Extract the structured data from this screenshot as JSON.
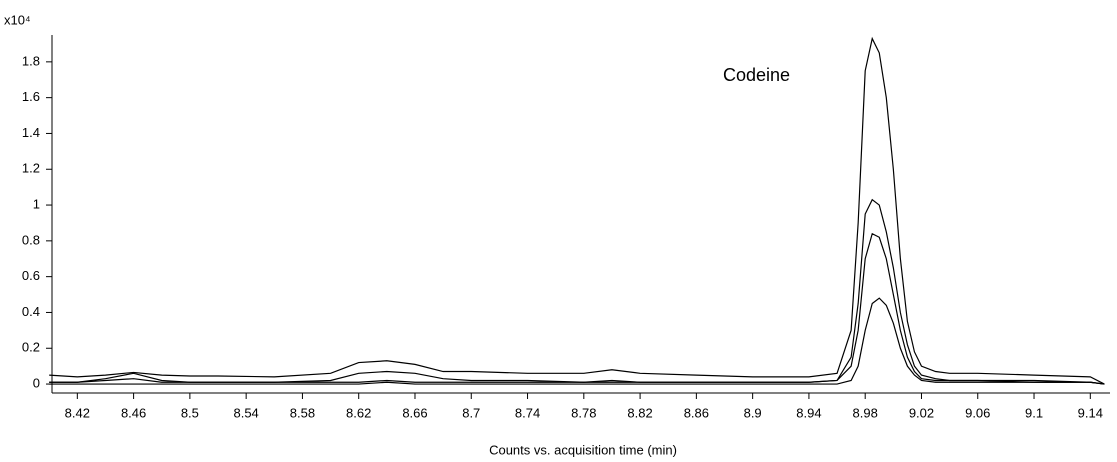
{
  "chart_data": {
    "type": "line",
    "y_multiplier": "x10⁴",
    "annotation": "Codeine",
    "xlabel": "Counts vs. acquisition time (min)",
    "x": [
      8.4,
      8.42,
      8.44,
      8.46,
      8.48,
      8.5,
      8.52,
      8.56,
      8.6,
      8.62,
      8.64,
      8.66,
      8.68,
      8.7,
      8.74,
      8.78,
      8.8,
      8.82,
      8.86,
      8.9,
      8.94,
      8.96,
      8.97,
      8.975,
      8.98,
      8.985,
      8.99,
      8.995,
      9.0,
      9.005,
      9.01,
      9.015,
      9.02,
      9.03,
      9.04,
      9.06,
      9.1,
      9.14,
      9.15
    ],
    "series": [
      {
        "color": "#000000",
        "values": [
          0.05,
          0.04,
          0.05,
          0.065,
          0.05,
          0.045,
          0.045,
          0.04,
          0.06,
          0.12,
          0.13,
          0.11,
          0.07,
          0.07,
          0.06,
          0.06,
          0.08,
          0.06,
          0.05,
          0.04,
          0.04,
          0.06,
          0.3,
          0.9,
          1.75,
          1.93,
          1.85,
          1.6,
          1.2,
          0.7,
          0.35,
          0.18,
          0.1,
          0.07,
          0.06,
          0.06,
          0.05,
          0.04,
          0
        ]
      },
      {
        "color": "#000000",
        "values": [
          0.01,
          0.01,
          0.03,
          0.06,
          0.02,
          0.01,
          0.01,
          0.01,
          0.02,
          0.06,
          0.07,
          0.06,
          0.03,
          0.02,
          0.02,
          0.01,
          0.02,
          0.01,
          0.01,
          0.01,
          0.01,
          0.02,
          0.15,
          0.45,
          0.95,
          1.03,
          1.0,
          0.85,
          0.65,
          0.4,
          0.22,
          0.1,
          0.05,
          0.03,
          0.02,
          0.02,
          0.02,
          0.01,
          0
        ]
      },
      {
        "color": "#000000",
        "values": [
          0.01,
          0.01,
          0.02,
          0.03,
          0.01,
          0.01,
          0.01,
          0.01,
          0.01,
          0.01,
          0.02,
          0.01,
          0.01,
          0.01,
          0.01,
          0.01,
          0.01,
          0.01,
          0.01,
          0.01,
          0.01,
          0.02,
          0.1,
          0.3,
          0.7,
          0.84,
          0.82,
          0.7,
          0.5,
          0.3,
          0.15,
          0.07,
          0.03,
          0.02,
          0.02,
          0.02,
          0.01,
          0.01,
          0
        ]
      },
      {
        "color": "#000000",
        "values": [
          0,
          0,
          0,
          0,
          0,
          0,
          0,
          0,
          0,
          0,
          0.01,
          0,
          0,
          0,
          0,
          0,
          0,
          0,
          0,
          0,
          0,
          0,
          0.02,
          0.1,
          0.3,
          0.45,
          0.48,
          0.44,
          0.34,
          0.2,
          0.1,
          0.05,
          0.02,
          0.01,
          0.01,
          0.01,
          0.01,
          0.01,
          0
        ]
      }
    ],
    "xlim": [
      8.402,
      9.154
    ],
    "ylim": [
      -0.05,
      1.95
    ],
    "xticks": [
      8.42,
      8.46,
      8.5,
      8.54,
      8.58,
      8.62,
      8.66,
      8.7,
      8.74,
      8.78,
      8.82,
      8.86,
      8.9,
      8.94,
      8.98,
      9.02,
      9.06,
      9.1,
      9.14
    ],
    "yticks": [
      0,
      0.2,
      0.4,
      0.6,
      0.8,
      1,
      1.2,
      1.4,
      1.6,
      1.8
    ]
  }
}
